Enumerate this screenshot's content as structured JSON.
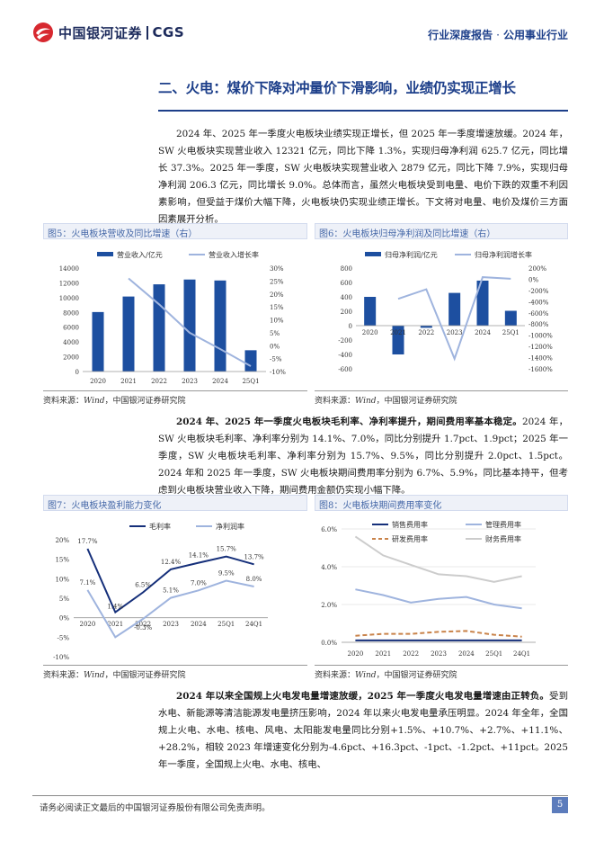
{
  "header": {
    "logo_cn": "中国银河证券",
    "logo_en": "CGS",
    "report_type": "行业深度报告",
    "separator": "·",
    "industry": "公用事业行业",
    "logo_icon": "cgs-swirl-logo-icon",
    "accent_color": "#1d3f8a",
    "logo_red": "#d7282f"
  },
  "section": {
    "title": "二、火电：煤价下降对冲量价下滑影响，业绩仍实现正增长"
  },
  "paragraphs": {
    "p1": "2024 年、2025 年一季度火电板块业绩实现正增长，但 2025 年一季度增速放缓。2024 年，SW 火电板块实现营业收入 12321 亿元，同比下降 1.3%，实现归母净利润 625.7 亿元，同比增长 37.3%。2025 年一季度，SW 火电板块实现营业收入 2879 亿元，同比下降 7.9%，实现归母净利润 206.3 亿元，同比增长 9.0%。总体而言，虽然火电板块受到电量、电价下跌的双重不利因素影响，但受益于煤价大幅下降，火电板块仍实现业绩正增长。下文将对电量、电价及煤价三方面因素展开分析。",
    "p2_bold": "2024 年、2025 年一季度火电板块毛利率、净利率提升，期间费用率基本稳定。",
    "p2_rest": "2024 年，SW 火电板块毛利率、净利率分别为 14.1%、7.0%，同比分别提升 1.7pct、1.9pct；2025 年一季度，SW 火电板块毛利率、净利率分别为 15.7%、9.5%，同比分别提升 2.0pct、1.5pct。2024 年和 2025 年一季度，SW 火电板块期间费用率分别为 6.7%、5.9%，同比基本持平，但考虑到火电板块营业收入下降，期间费用金额仍实现小幅下降。",
    "p3_bold": "2024 年以来全国规上火电发电量增速放缓，2025 年一季度火电发电量增速由正转负。",
    "p3_rest": "受到水电、新能源等清洁能源发电量挤压影响，2024 年以来火电发电量承压明显。2024 年全年，全国规上火电、水电、核电、风电、太阳能发电量同比分别+1.5%、+10.7%、+2.7%、+11.1%、+28.2%，相较 2023 年增速变化分别为-4.6pct、+16.3pct、-1pct、-1.2pct、+11pct。2025 年一季度，全国规上火电、水电、核电、"
  },
  "figures": {
    "fig5": {
      "title": "图5：火电板块营收及同比增速（右）",
      "source_prefix": "资料来源：",
      "source_italic": "Wind",
      "source_rest": "，中国银河证券研究院"
    },
    "fig6": {
      "title": "图6：火电板块归母净利润及同比增速（右）",
      "source_prefix": "资料来源：",
      "source_italic": "Wind",
      "source_rest": "，中国银河证券研究院"
    },
    "fig7": {
      "title": "图7：火电板块盈利能力变化",
      "source_prefix": "资料来源：",
      "source_italic": "Wind",
      "source_rest": "，中国银河证券研究院"
    },
    "fig8": {
      "title": "图8：火电板块期间费用率变化",
      "source_prefix": "资料来源：",
      "source_italic": "Wind",
      "source_rest": "，中国银河证券研究院"
    }
  },
  "chart_data": [
    {
      "id": "fig5",
      "type": "bar+line",
      "categories": [
        "2020",
        "2021",
        "2022",
        "2023",
        "2024",
        "25Q1"
      ],
      "series": [
        {
          "name": "营业收入/亿元",
          "kind": "bar",
          "axis": "left",
          "color": "#1d4fa0",
          "values": [
            8050,
            10150,
            11800,
            12450,
            12321,
            2879
          ]
        },
        {
          "name": "营业收入增长率",
          "kind": "line",
          "axis": "right",
          "color": "#9fb4de",
          "values": [
            null,
            0.26,
            0.16,
            0.05,
            -0.013,
            -0.079
          ]
        }
      ],
      "left_axis": {
        "range": [
          0,
          14000
        ],
        "ticks": [
          "0",
          "2000",
          "4000",
          "6000",
          "8000",
          "10000",
          "12000",
          "14000"
        ]
      },
      "right_axis": {
        "range": [
          -0.1,
          0.3
        ],
        "ticks": [
          "-10%",
          "-5%",
          "0%",
          "5%",
          "10%",
          "15%",
          "20%",
          "25%",
          "30%"
        ]
      },
      "legend": "top"
    },
    {
      "id": "fig6",
      "type": "bar+line",
      "categories": [
        "2020",
        "2021",
        "2022",
        "2023",
        "2024",
        "25Q1"
      ],
      "series": [
        {
          "name": "归母净利润/亿元",
          "kind": "bar",
          "axis": "left",
          "color": "#1d4fa0",
          "values": [
            400,
            -400,
            -30,
            455,
            625.7,
            206.3
          ]
        },
        {
          "name": "归母净利润增长率",
          "kind": "line",
          "axis": "right",
          "color": "#9fb4de",
          "values": [
            null,
            -350,
            -180,
            -1420,
            37.3,
            9.0
          ]
        }
      ],
      "left_axis": {
        "range": [
          -600,
          800
        ],
        "ticks": [
          "-600",
          "-400",
          "-200",
          "0",
          "200",
          "400",
          "600",
          "800"
        ]
      },
      "right_axis": {
        "range": [
          -1600,
          200
        ],
        "ticks": [
          "-1600%",
          "-1400%",
          "-1200%",
          "-1000%",
          "-800%",
          "-600%",
          "-400%",
          "-200%",
          "0%",
          "200%"
        ]
      },
      "legend": "top"
    },
    {
      "id": "fig7",
      "type": "line",
      "categories": [
        "2020",
        "2021",
        "2022",
        "2023",
        "2024",
        "25Q1",
        "24Q1"
      ],
      "series": [
        {
          "name": "毛利率",
          "color": "#152f7a",
          "values": [
            17.7,
            1.4,
            6.5,
            12.4,
            14.1,
            15.7,
            13.7
          ],
          "labels": [
            "17.7%",
            "1.4%",
            "6.5%",
            "12.4%",
            "14.1%",
            "15.7%",
            "13.7%"
          ]
        },
        {
          "name": "净利润率",
          "color": "#9fb4de",
          "values": [
            7.1,
            -5.0,
            -0.3,
            5.1,
            7.0,
            9.5,
            8.0
          ],
          "labels": [
            "7.1%",
            "",
            "-0.3%",
            "5.1%",
            "7.0%",
            "9.5%",
            "8.0%"
          ]
        }
      ],
      "y_axis": {
        "range": [
          -10,
          20
        ],
        "ticks": [
          "-10%",
          "-5%",
          "0%",
          "5%",
          "10%",
          "15%",
          "20%"
        ]
      },
      "legend": "top"
    },
    {
      "id": "fig8",
      "type": "line",
      "categories": [
        "2020",
        "2021",
        "2022",
        "2023",
        "2024",
        "25Q1",
        "24Q1"
      ],
      "series": [
        {
          "name": "销售费用率",
          "color": "#152f7a",
          "dash": false,
          "values": [
            0.1,
            0.1,
            0.1,
            0.1,
            0.1,
            0.1,
            0.1
          ]
        },
        {
          "name": "管理费用率",
          "color": "#9fb4de",
          "dash": false,
          "values": [
            2.8,
            2.5,
            2.1,
            2.3,
            2.4,
            2.0,
            1.8
          ]
        },
        {
          "name": "研发费用率",
          "color": "#c9834a",
          "dash": true,
          "values": [
            0.35,
            0.45,
            0.45,
            0.55,
            0.6,
            0.4,
            0.3
          ]
        },
        {
          "name": "财务费用率",
          "color": "#cccccc",
          "dash": false,
          "values": [
            5.6,
            4.6,
            4.1,
            3.6,
            3.5,
            3.2,
            3.5
          ]
        }
      ],
      "y_axis": {
        "range": [
          0,
          6
        ],
        "ticks": [
          "0.0%",
          "2.0%",
          "4.0%",
          "6.0%"
        ]
      },
      "legend": "top"
    }
  ],
  "footer": {
    "disclaimer": "请务必阅读正文最后的中国银河证券股份有限公司免责声明。",
    "page": "5"
  }
}
